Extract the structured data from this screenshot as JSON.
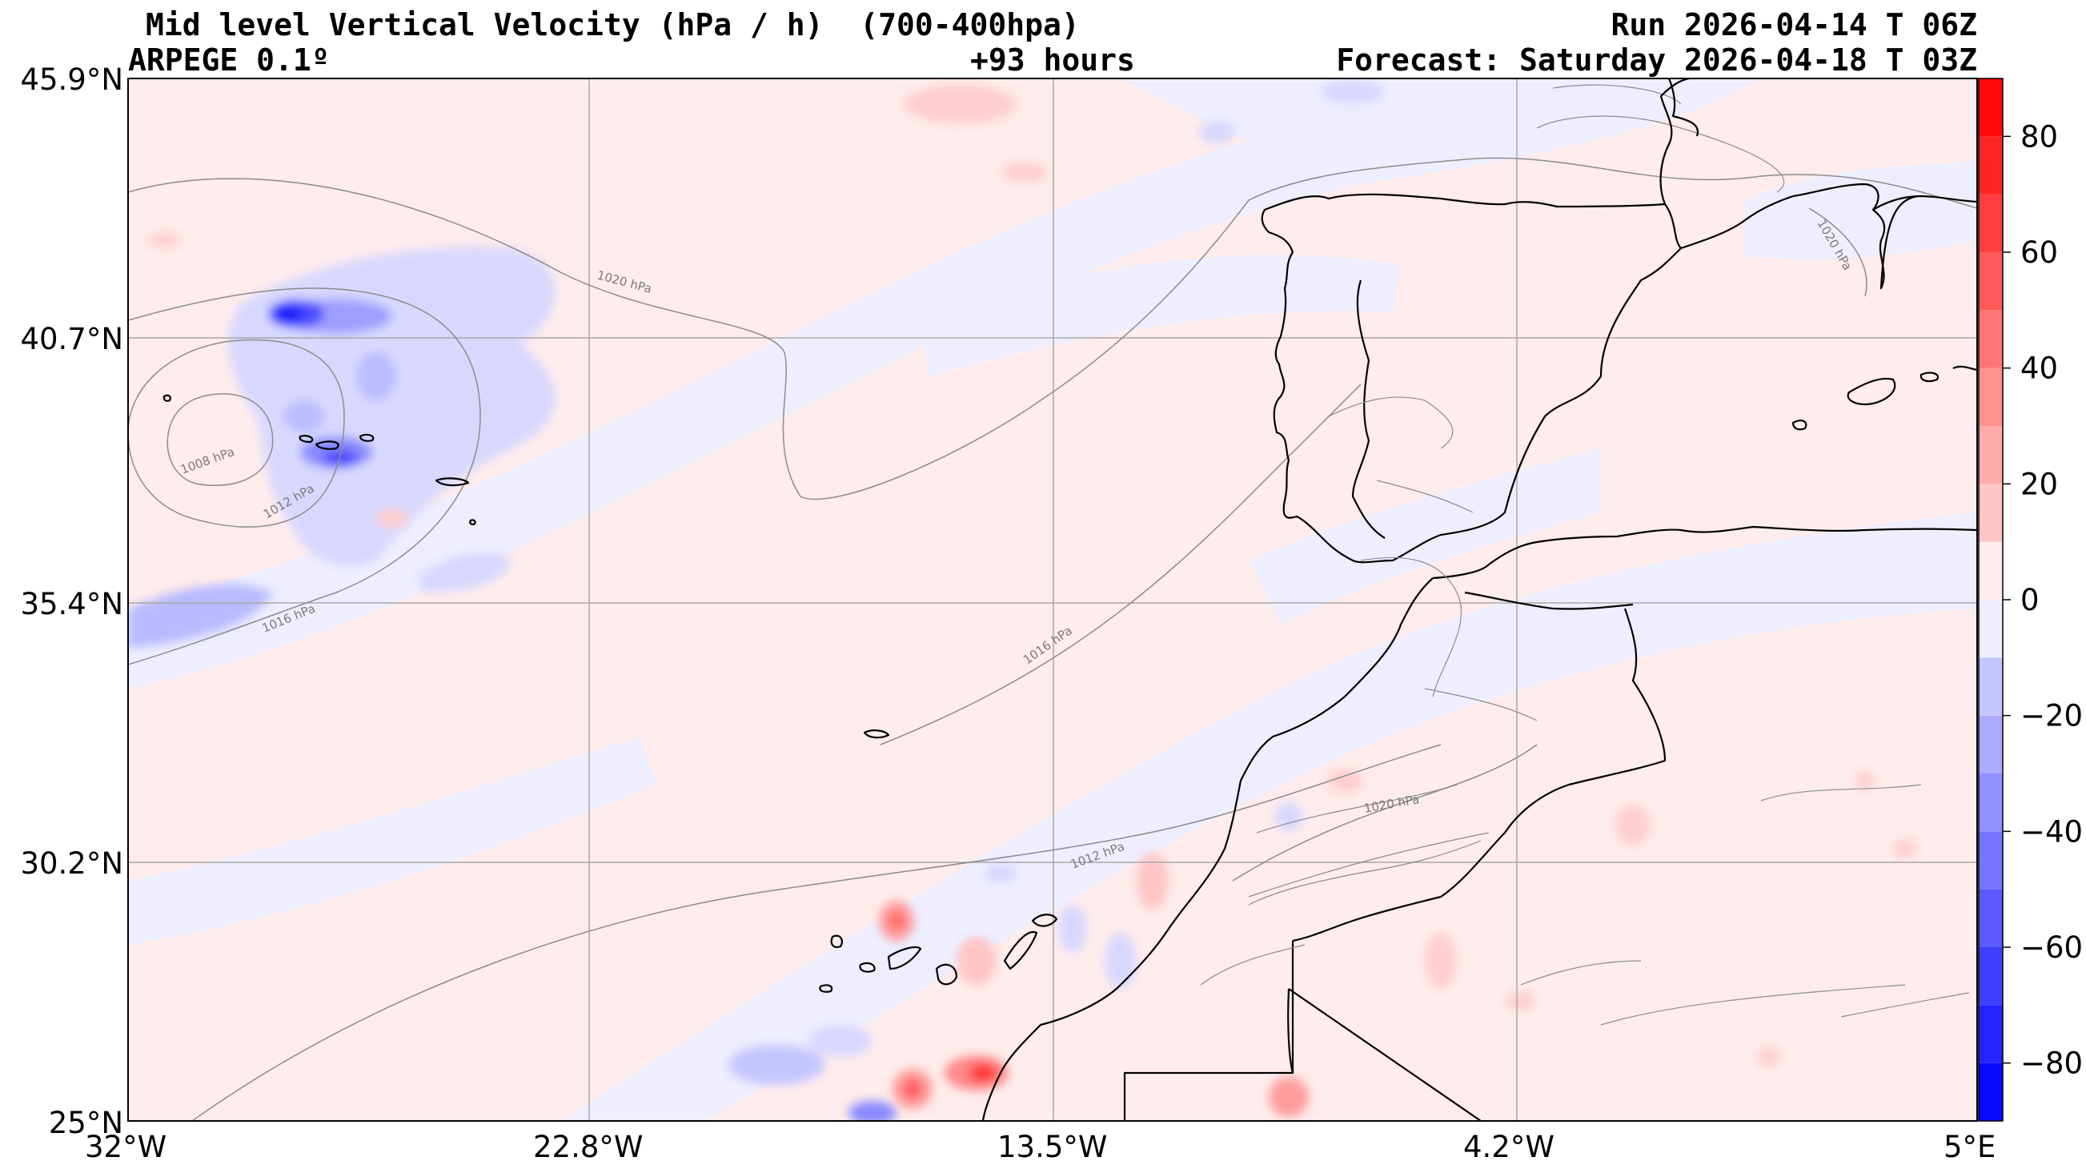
{
  "header": {
    "title": "Mid level Vertical Velocity (hPa / h)  (700-400hpa)",
    "model": "ARPEGE 0.1º",
    "lead_time": "+93 hours",
    "run": "Run 2026-04-14 T 06Z",
    "forecast": "Forecast: Saturday 2026-04-18 T 03Z"
  },
  "axes": {
    "lat_labels": [
      "45.9°N",
      "40.7°N",
      "35.4°N",
      "30.2°N",
      "25°N"
    ],
    "lon_labels": [
      "32°W",
      "22.8°W",
      "13.5°W",
      "4.2°W",
      "5°E"
    ]
  },
  "colorbar": {
    "tick_labels": [
      "80",
      "60",
      "40",
      "20",
      "0",
      "−20",
      "−40",
      "−60",
      "−80"
    ],
    "min": -90,
    "max": 90,
    "positive_color": "#ff0000",
    "negative_color": "#0000ff",
    "neutral_pos_color": "#ffecec",
    "neutral_neg_color": "#eeeeff"
  },
  "isobar_labels": [
    "1008 hPa",
    "1012 hPa",
    "1016 hPa",
    "1020 hPa",
    "1016 hPa",
    "1012 hPa",
    "1020 hPa",
    "1020 hPa"
  ],
  "colors": {
    "coast": "#000000",
    "isobar": "#8c8c8c",
    "grid": "#a8a8a8"
  }
}
